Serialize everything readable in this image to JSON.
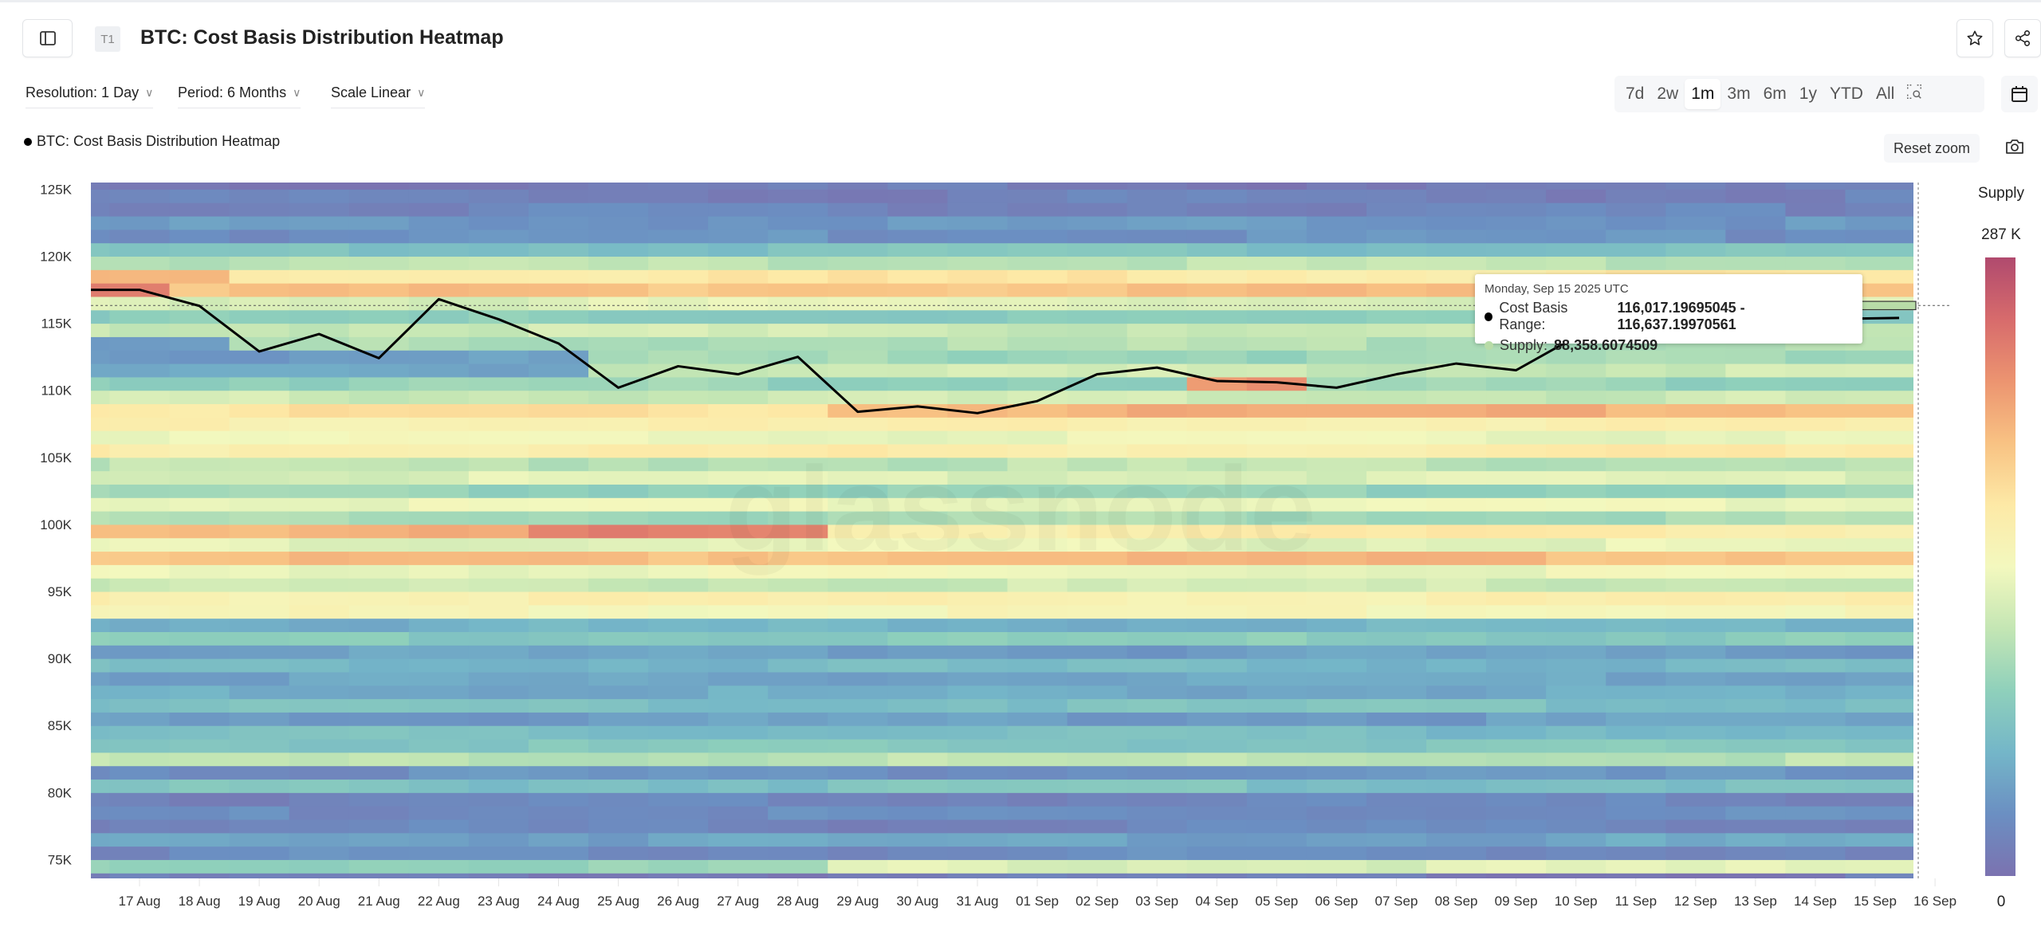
{
  "header": {
    "badge": "T1",
    "title": "BTC: Cost Basis Distribution Heatmap"
  },
  "controls": {
    "resolution": "Resolution: 1 Day",
    "period": "Period: 6 Months",
    "scale": "Scale Linear",
    "ranges": [
      "7d",
      "2w",
      "1m",
      "3m",
      "6m",
      "1y",
      "YTD",
      "All"
    ],
    "active_range": "1m",
    "reset_zoom": "Reset zoom"
  },
  "icons": {
    "sidebar": "sidebar-toggle-icon",
    "star": "star-icon",
    "share": "share-icon",
    "zoom_select": "zoom-select-icon",
    "calendar": "calendar-icon",
    "camera": "camera-icon"
  },
  "legend": {
    "label": "BTC: Cost Basis Distribution Heatmap"
  },
  "watermark": "glassnode",
  "tooltip": {
    "date": "Monday, Sep 15 2025 UTC",
    "range_label": "Cost Basis Range:",
    "range_value": "116,017.19695045 - 116,637.19970561",
    "supply_label": "Supply:",
    "supply_value": "88,358.6074509",
    "range_dot_color": "#000000",
    "supply_dot_color": "#b8dca7"
  },
  "chart_data": {
    "type": "heatmap",
    "title": "",
    "xlabel": "",
    "ylabel": "",
    "x_dates": [
      "2025-08-16",
      "2025-08-17",
      "2025-08-18",
      "2025-08-19",
      "2025-08-20",
      "2025-08-21",
      "2025-08-22",
      "2025-08-23",
      "2025-08-24",
      "2025-08-25",
      "2025-08-26",
      "2025-08-27",
      "2025-08-28",
      "2025-08-29",
      "2025-08-30",
      "2025-08-31",
      "2025-09-01",
      "2025-09-02",
      "2025-09-03",
      "2025-09-04",
      "2025-09-05",
      "2025-09-06",
      "2025-09-07",
      "2025-09-08",
      "2025-09-09",
      "2025-09-10",
      "2025-09-11",
      "2025-09-12",
      "2025-09-13",
      "2025-09-14",
      "2025-09-15"
    ],
    "x_tick_labels": [
      "17 Aug",
      "18 Aug",
      "19 Aug",
      "20 Aug",
      "21 Aug",
      "22 Aug",
      "23 Aug",
      "24 Aug",
      "25 Aug",
      "26 Aug",
      "27 Aug",
      "28 Aug",
      "29 Aug",
      "30 Aug",
      "31 Aug",
      "01 Sep",
      "02 Sep",
      "03 Sep",
      "04 Sep",
      "05 Sep",
      "06 Sep",
      "07 Sep",
      "08 Sep",
      "09 Sep",
      "10 Sep",
      "11 Sep",
      "12 Sep",
      "13 Sep",
      "14 Sep",
      "15 Sep",
      "16 Sep"
    ],
    "y_ticks": [
      75000,
      80000,
      85000,
      90000,
      95000,
      100000,
      105000,
      110000,
      115000,
      120000,
      125000
    ],
    "y_tick_labels": [
      "75K",
      "80K",
      "85K",
      "90K",
      "95K",
      "100K",
      "105K",
      "110K",
      "115K",
      "120K",
      "125K"
    ],
    "ylim": [
      73600,
      125500
    ],
    "bucket_size": 1000,
    "bucket_start": 73000,
    "supply_by_bucket_k": [
      10,
      90,
      25,
      45,
      20,
      25,
      20,
      70,
      30,
      110,
      75,
      65,
      40,
      70,
      50,
      45,
      60,
      40,
      80,
      55,
      150,
      160,
      120,
      140,
      205,
      135,
      210,
      100,
      140,
      90,
      130,
      110,
      165,
      140,
      160,
      175,
      120,
      90,
      45,
      40,
      100,
      120,
      80,
      130,
      200,
      170,
      110,
      70,
      30,
      35,
      20,
      15,
      10
    ],
    "adjustments_k": [
      {
        "from": "2025-08-16",
        "to": "2025-08-17",
        "bucket": 117000,
        "value": 250
      },
      {
        "from": "2025-08-16",
        "to": "2025-08-18",
        "bucket": 118000,
        "value": 205
      },
      {
        "from": "2025-08-16",
        "to": "2025-08-18",
        "bucket": 113000,
        "value": 30
      },
      {
        "from": "2025-08-25",
        "to": "2025-09-15",
        "bucket": 113000,
        "value": 105
      },
      {
        "from": "2025-08-25",
        "to": "2025-09-15",
        "bucket": 112000,
        "value": 95
      },
      {
        "from": "2025-08-25",
        "to": "2025-09-15",
        "bucket": 111000,
        "value": 120
      },
      {
        "from": "2025-08-29",
        "to": "2025-09-15",
        "bucket": 108000,
        "value": 210
      },
      {
        "from": "2025-09-04",
        "to": "2025-09-05",
        "bucket": 110000,
        "value": 225
      },
      {
        "from": "2025-08-24",
        "to": "2025-08-28",
        "bucket": 99000,
        "value": 240
      },
      {
        "from": "2025-08-29",
        "to": "2025-09-15",
        "bucket": 99000,
        "value": 165
      },
      {
        "from": "2025-08-16",
        "to": "2025-08-19",
        "bucket": 97000,
        "value": 200
      },
      {
        "from": "2025-08-29",
        "to": "2025-09-15",
        "bucket": 74000,
        "value": 130
      }
    ],
    "color_scale": {
      "min": 0,
      "max": 287000,
      "min_label": "0",
      "max_label": "287 K",
      "title": "Supply",
      "stops": [
        "#7b72b0",
        "#6b8fc2",
        "#74b6c8",
        "#8fd0bb",
        "#c4e6b4",
        "#f3f8be",
        "#fde9a6",
        "#f8c283",
        "#ec9470",
        "#d76b6c",
        "#b04a6e"
      ]
    },
    "price_line": {
      "color": "#000000",
      "values": [
        117500,
        117500,
        116300,
        112900,
        114200,
        112400,
        116800,
        115300,
        113500,
        110200,
        111800,
        111200,
        112500,
        108400,
        108800,
        108300,
        109200,
        111200,
        111700,
        110700,
        110600,
        110200,
        111200,
        112000,
        111500,
        114000,
        115500,
        116000,
        115400,
        115300,
        115400
      ]
    },
    "crosshair": {
      "date": "2025-09-15",
      "price": 116327
    },
    "highlight": {
      "date": "2025-09-15",
      "range": [
        116017.19695045,
        116637.19970561
      ],
      "supply": 88358.6074509,
      "color": "#b8dca7"
    },
    "grid": false,
    "legend_placement": "top-left"
  }
}
